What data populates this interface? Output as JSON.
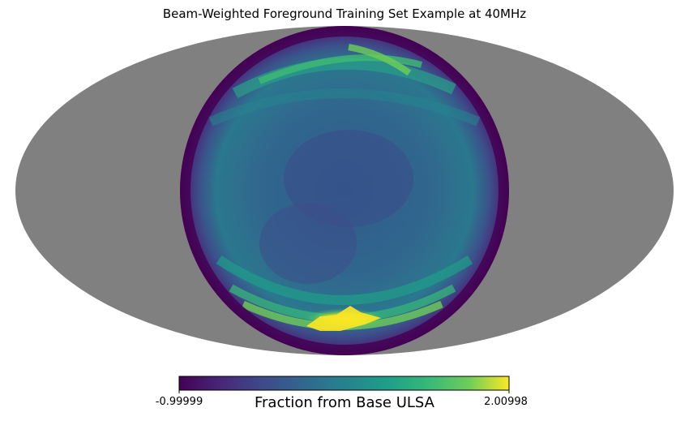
{
  "chart_data": {
    "type": "heatmap",
    "projection": "mollweide",
    "title": "Beam-Weighted Foreground Training Set Example at 40MHz",
    "colormap": "viridis",
    "colorbar": {
      "label": "Fraction from Base ULSA",
      "min_label": "-0.99999",
      "max_label": "2.00998",
      "range": [
        -0.99999,
        2.00998
      ]
    },
    "masked_color": "#808080",
    "features": [
      {
        "value": -0.9,
        "region": "outer ring of the beam"
      },
      {
        "value": 0.0,
        "region": "central region"
      },
      {
        "value": 1.6,
        "region": "bright arc near bottom"
      },
      {
        "value": 2.0,
        "region": "peak near bottom"
      },
      {
        "value": 1.2,
        "region": "arcs near top"
      }
    ]
  }
}
